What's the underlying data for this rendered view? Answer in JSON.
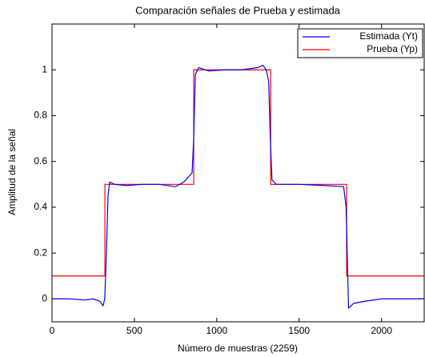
{
  "chart_data": {
    "type": "line",
    "title": "Comparación señales de Prueba y estimada",
    "x_label": "Número de muestras (2259)",
    "y_label": "Amplitud de la señal",
    "xlim": [
      0,
      2259
    ],
    "xticks": [
      0,
      500,
      1000,
      1500,
      2000
    ],
    "ylim": [
      -0.1,
      1.2
    ],
    "yticks": [
      0,
      0.2,
      0.4,
      0.6,
      0.8,
      1
    ],
    "legend_position": "upper right",
    "series": [
      {
        "name": "Estimada (Yt)",
        "color": "#0000ff",
        "x": [
          0,
          100,
          200,
          250,
          290,
          310,
          320,
          330,
          340,
          350,
          380,
          450,
          550,
          650,
          750,
          800,
          850,
          860,
          870,
          890,
          950,
          1050,
          1150,
          1250,
          1280,
          1300,
          1315,
          1325,
          1335,
          1360,
          1500,
          1650,
          1770,
          1785,
          1795,
          1800,
          1830,
          1900,
          2000,
          2259
        ],
        "values": [
          0,
          0,
          -0.005,
          0,
          -0.01,
          -0.03,
          0,
          0.2,
          0.45,
          0.51,
          0.5,
          0.495,
          0.5,
          0.5,
          0.49,
          0.51,
          0.55,
          0.7,
          0.98,
          1.01,
          0.995,
          1.0,
          1.0,
          1.01,
          1.02,
          1.0,
          0.95,
          0.7,
          0.52,
          0.5,
          0.5,
          0.495,
          0.49,
          0.4,
          0.1,
          -0.04,
          -0.02,
          -0.01,
          0,
          0
        ]
      },
      {
        "name": "Prueba (Yp)",
        "color": "#ff0000",
        "x": [
          0,
          321,
          321,
          860,
          860,
          1327,
          1327,
          1788,
          1788,
          2259
        ],
        "values": [
          0.1,
          0.1,
          0.5,
          0.5,
          1,
          1,
          0.5,
          0.5,
          0.1,
          0.1
        ]
      }
    ]
  }
}
